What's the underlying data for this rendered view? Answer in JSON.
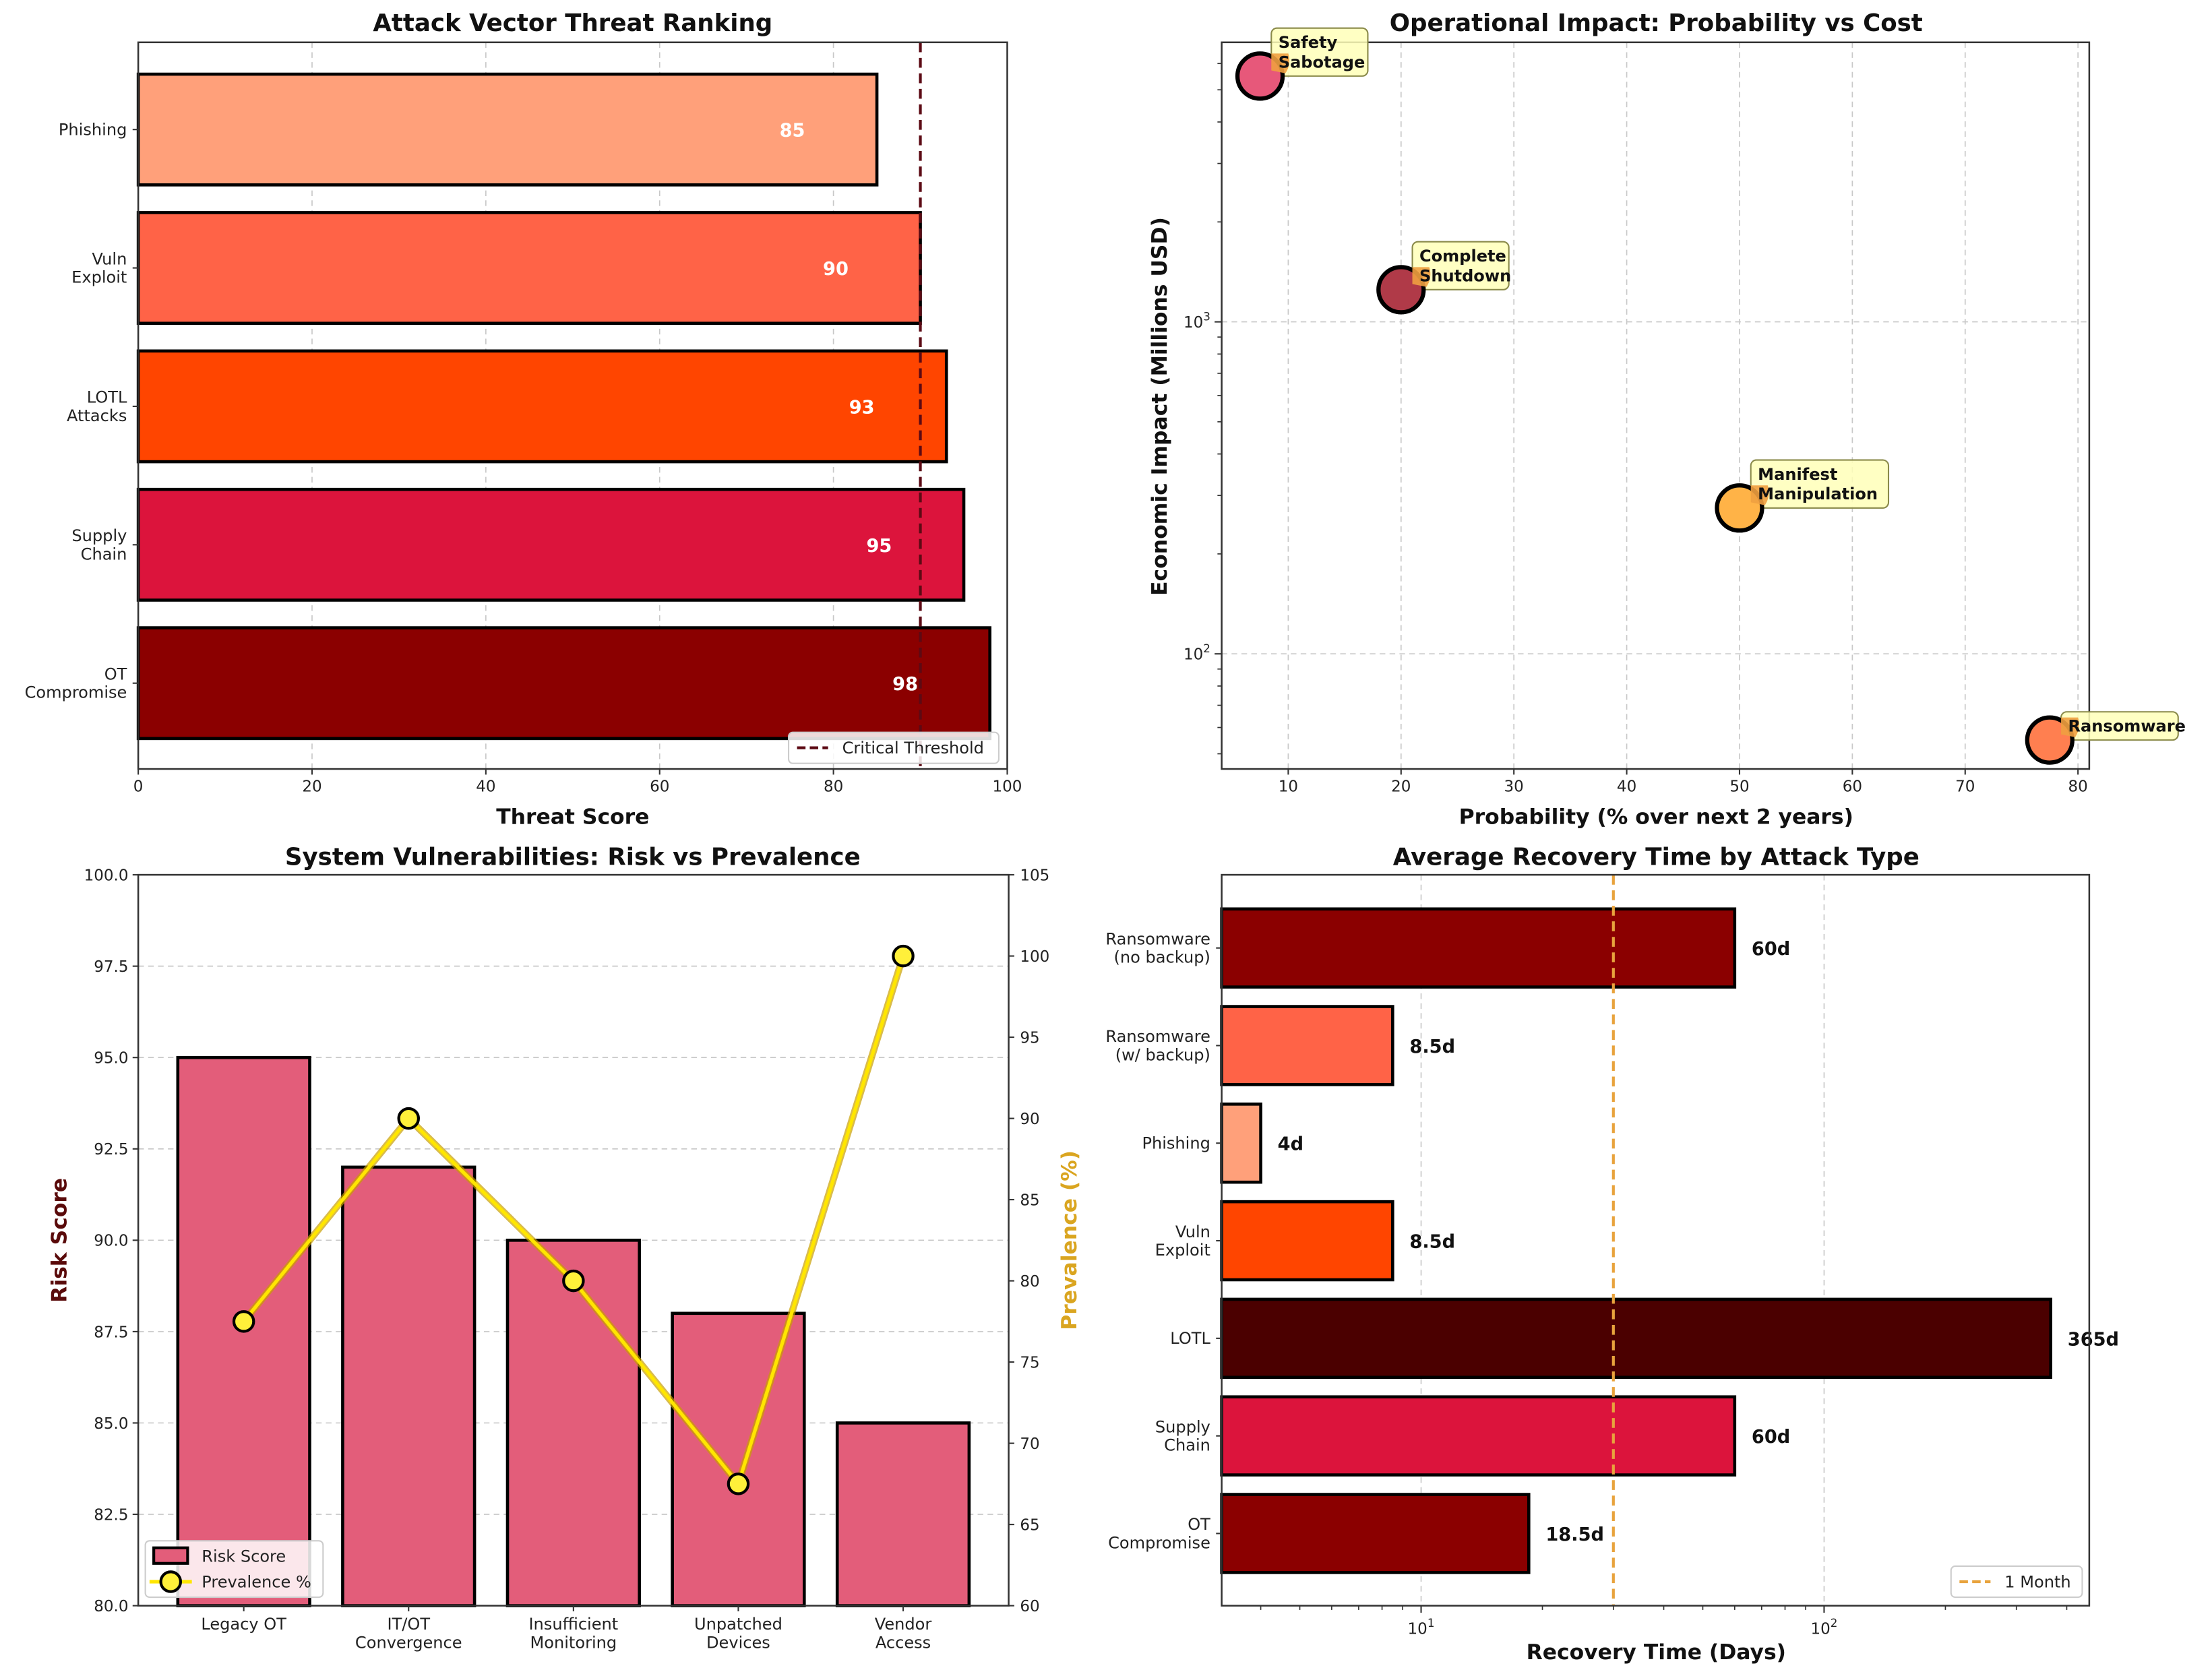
{
  "chart_data": [
    {
      "id": "threat",
      "type": "bar",
      "orientation": "horizontal",
      "title": "Attack Vector Threat Ranking",
      "xlabel": "Threat Score",
      "ylabel": "",
      "categories": [
        "Phishing",
        "Vuln\nExploit",
        "LOTL\nAttacks",
        "Supply\nChain",
        "OT\nCompromise"
      ],
      "values": [
        85,
        90,
        93,
        95,
        98
      ],
      "value_labels": [
        "85",
        "90",
        "93",
        "95",
        "98"
      ],
      "colors": [
        "#FFA07A",
        "#FF6347",
        "#FF4500",
        "#DC143C",
        "#8B0000"
      ],
      "xlim": [
        0,
        100
      ],
      "xticks": [
        0,
        20,
        40,
        60,
        80,
        100
      ],
      "grid": "x",
      "threshold": {
        "value": 90,
        "label": "Critical Threshold",
        "color": "#5C0A14"
      },
      "legend": "bottom-right"
    },
    {
      "id": "impact",
      "type": "scatter",
      "title": "Operational Impact: Probability vs Cost",
      "xlabel": "Probability (% over next 2 years)",
      "ylabel": "Economic Impact (Millions USD)",
      "yscale": "log",
      "xlim": [
        4.1,
        81
      ],
      "ylim": [
        45,
        6950
      ],
      "xticks": [
        10,
        20,
        30,
        40,
        50,
        60,
        70,
        80
      ],
      "yticks": [
        {
          "value": 100,
          "label": "10",
          "exp": "2"
        },
        {
          "value": 1000,
          "label": "10",
          "exp": "3"
        }
      ],
      "grid": "both",
      "points": [
        {
          "label": "Safety\nSabotage",
          "x": 7.5,
          "y": 5500,
          "color": "#E7587A"
        },
        {
          "label": "Complete\nShutdown",
          "x": 20,
          "y": 1250,
          "color": "#B03A48"
        },
        {
          "label": "Manifest\nManipulation",
          "x": 50,
          "y": 275,
          "color": "#FFB347"
        },
        {
          "label": "Ransomware",
          "x": 77.5,
          "y": 55,
          "color": "#FF7F50"
        }
      ]
    },
    {
      "id": "vuln",
      "type": "bar",
      "title": "System Vulnerabilities: Risk vs Prevalence",
      "xlabel": "",
      "ylabel": "Risk Score",
      "ylabel_color": "#5A0A0A",
      "y2label": "Prevalence (%)",
      "y2label_color": "#DAA520",
      "categories": [
        "Legacy OT",
        "IT/OT\nConvergence",
        "Insufficient\nMonitoring",
        "Unpatched\nDevices",
        "Vendor\nAccess"
      ],
      "series": [
        {
          "name": "Risk Score",
          "type": "bar",
          "axis": "left",
          "values": [
            95,
            92,
            90,
            88,
            85
          ],
          "color": "#E35D7A"
        },
        {
          "name": "Prevalence %",
          "type": "line",
          "axis": "right",
          "values": [
            77.5,
            90,
            80,
            67.5,
            100
          ],
          "color": "#FFE600",
          "marker_color": "#FFF03A"
        }
      ],
      "ylim": [
        80,
        100
      ],
      "yticks": [
        "80.0",
        "82.5",
        "85.0",
        "87.5",
        "90.0",
        "92.5",
        "95.0",
        "97.5",
        "100.0"
      ],
      "y2lim": [
        60,
        105
      ],
      "y2ticks": [
        60,
        65,
        70,
        75,
        80,
        85,
        90,
        95,
        100,
        105
      ],
      "grid": "y",
      "legend": "bottom-left"
    },
    {
      "id": "recovery",
      "type": "bar",
      "orientation": "horizontal",
      "title": "Average Recovery Time by Attack Type",
      "xlabel": "Recovery Time (Days)",
      "xscale": "log",
      "xlim": [
        3.2,
        455
      ],
      "xticks": [
        {
          "value": 10,
          "label": "10",
          "exp": "1"
        },
        {
          "value": 100,
          "label": "10",
          "exp": "2"
        }
      ],
      "categories": [
        "Ransomware\n(no backup)",
        "Ransomware\n(w/ backup)",
        "Phishing",
        "Vuln\nExploit",
        "LOTL",
        "Supply\nChain",
        "OT\nCompromise"
      ],
      "values": [
        60,
        8.5,
        4,
        8.5,
        365,
        60,
        18.5
      ],
      "value_labels": [
        "60d",
        "8.5d",
        "4d",
        "8.5d",
        "365d",
        "60d",
        "18.5d"
      ],
      "colors": [
        "#8B0000",
        "#FF6347",
        "#FFA07A",
        "#FF4500",
        "#4B0000",
        "#DC143C",
        "#8B0000"
      ],
      "grid": "x",
      "reference": {
        "value": 30,
        "label": "1 Month",
        "color": "#E8A33D"
      },
      "legend": "bottom-right"
    }
  ]
}
